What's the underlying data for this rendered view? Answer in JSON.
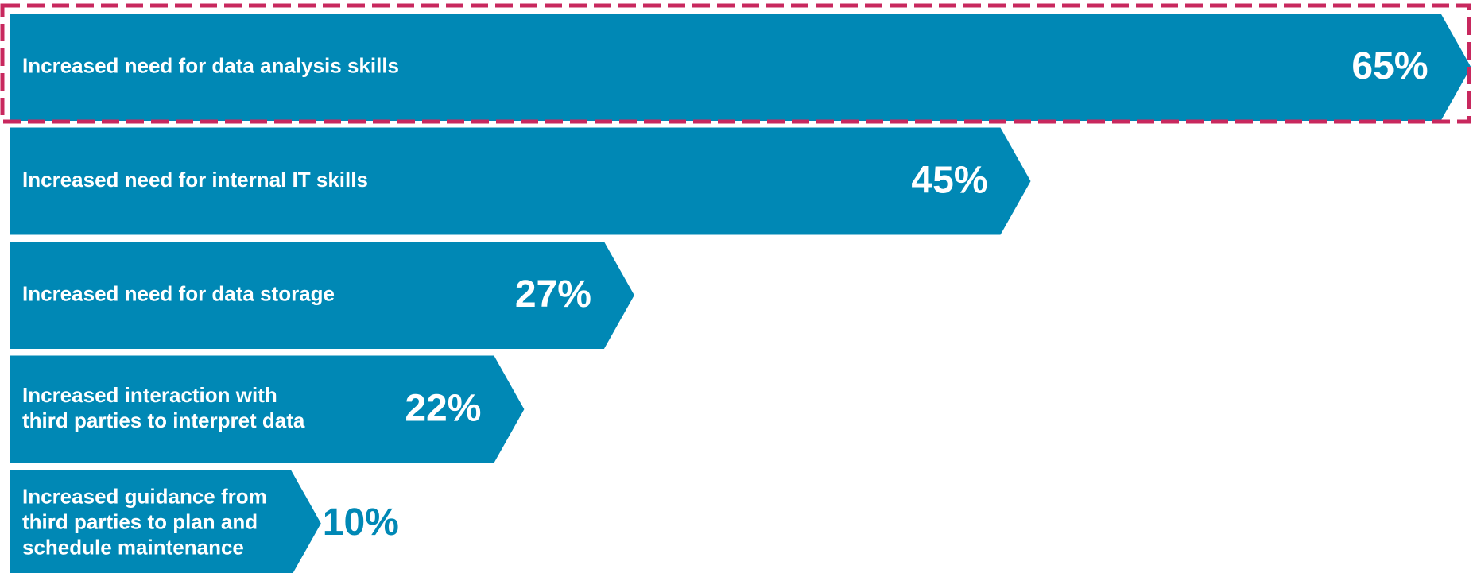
{
  "chart_data": {
    "type": "bar",
    "categories": [
      "Increased need for data analysis skills",
      "Increased need for internal IT skills",
      "Increased need for data storage",
      "Increased interaction with\nthird parties to interpret data",
      "Increased guidance from\nthird parties to plan and\nschedule maintenance"
    ],
    "values": [
      65,
      45,
      27,
      22,
      10
    ],
    "value_labels": [
      "65%",
      "45%",
      "27%",
      "22%",
      "10%"
    ],
    "color": "#0088b5"
  }
}
